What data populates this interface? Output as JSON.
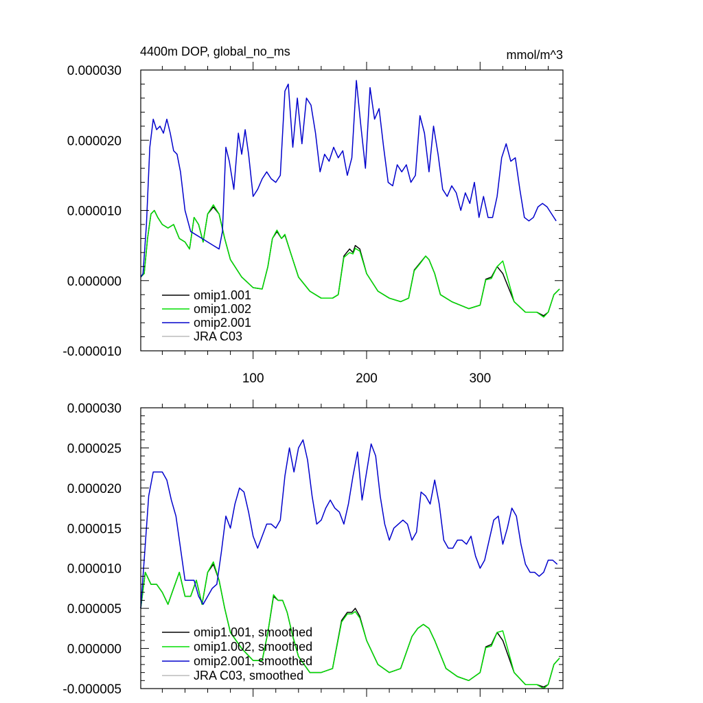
{
  "figure": {
    "title_left": "4400m DOP, global_no_ms",
    "title_right": "mmol/m^3"
  },
  "colors": {
    "omip1_001": "#000000",
    "omip1_002": "#00dd00",
    "omip2_001": "#0000cc",
    "jra_c03": "#bbbbbb"
  },
  "chart_data": [
    {
      "type": "line",
      "panel": "top",
      "title": "4400m DOP, global_no_ms",
      "units": "mmol/m^3",
      "xlim": [
        1,
        373
      ],
      "ylim": [
        -1e-05,
        3e-05
      ],
      "xticks": [
        100,
        200,
        300
      ],
      "xtick_labels": [
        "100",
        "200",
        "300"
      ],
      "yticks": [
        -1e-05,
        0.0,
        1e-05,
        2e-05,
        3e-05
      ],
      "ytick_labels": [
        "-0.000010",
        "0.000000",
        "0.000010",
        "0.000020",
        "0.000030"
      ],
      "legend": [
        "omip1.001",
        "omip1.002",
        "omip2.001",
        "JRA C03"
      ],
      "legend_position": "bottom-left",
      "series": [
        {
          "name": "omip1.001",
          "color_key": "omip1_001",
          "x": [
            1,
            4,
            7,
            10,
            13,
            16,
            20,
            25,
            30,
            35,
            40,
            44,
            48,
            52,
            56,
            60,
            65,
            70,
            75,
            80,
            90,
            100,
            108,
            113,
            117,
            121,
            125,
            128,
            133,
            140,
            150,
            160,
            170,
            175,
            180,
            185,
            188,
            190,
            194,
            200,
            210,
            220,
            230,
            237,
            242,
            247,
            252,
            255,
            260,
            265,
            275,
            290,
            300,
            305,
            310,
            315,
            320,
            330,
            340,
            350,
            356,
            360,
            365,
            370
          ],
          "y": [
            5e-07,
            1e-06,
            6e-06,
            9.5e-06,
            1e-05,
            9e-06,
            8e-06,
            7.5e-06,
            8e-06,
            6e-06,
            5.5e-06,
            4.5e-06,
            9e-06,
            8e-06,
            5.5e-06,
            9.5e-06,
            1.05e-05,
            9.5e-06,
            6e-06,
            3e-06,
            5e-07,
            -1e-06,
            -1.2e-06,
            2e-06,
            6e-06,
            7e-06,
            6e-06,
            6.5e-06,
            4e-06,
            5e-07,
            -1.5e-06,
            -2.5e-06,
            -2.5e-06,
            -2e-06,
            3.5e-06,
            4.5e-06,
            4e-06,
            5e-06,
            4.5e-06,
            1e-06,
            -1.5e-06,
            -2.5e-06,
            -3e-06,
            -2.5e-06,
            1.5e-06,
            2.5e-06,
            3.5e-06,
            3e-06,
            1e-06,
            -2e-06,
            -3e-06,
            -4e-06,
            -3.5e-06,
            2e-07,
            5e-07,
            2e-06,
            1e-06,
            -3e-06,
            -4.5e-06,
            -4.5e-06,
            -5e-06,
            -4.5e-06,
            -2e-06,
            -1.2e-06
          ]
        },
        {
          "name": "omip1.002",
          "color_key": "omip1_002",
          "x": [
            1,
            4,
            7,
            10,
            13,
            16,
            20,
            25,
            30,
            35,
            40,
            44,
            48,
            52,
            56,
            60,
            65,
            70,
            75,
            80,
            90,
            100,
            108,
            113,
            117,
            121,
            125,
            128,
            133,
            140,
            150,
            160,
            170,
            175,
            180,
            185,
            188,
            190,
            194,
            200,
            210,
            220,
            230,
            237,
            242,
            247,
            252,
            255,
            260,
            265,
            275,
            290,
            300,
            305,
            310,
            315,
            320,
            330,
            340,
            350,
            356,
            360,
            365,
            370
          ],
          "y": [
            5e-07,
            1e-06,
            6e-06,
            9.5e-06,
            1e-05,
            9e-06,
            8e-06,
            7.5e-06,
            8e-06,
            6e-06,
            5.5e-06,
            4.5e-06,
            9e-06,
            8e-06,
            5.5e-06,
            9.5e-06,
            1.08e-05,
            9.5e-06,
            6e-06,
            3e-06,
            5e-07,
            -1e-06,
            -1.2e-06,
            2e-06,
            6e-06,
            7.2e-06,
            6e-06,
            6.6e-06,
            4e-06,
            5e-07,
            -1.5e-06,
            -2.5e-06,
            -2.5e-06,
            -2e-06,
            3.3e-06,
            4e-06,
            3.8e-06,
            4.6e-06,
            4.2e-06,
            1e-06,
            -1.5e-06,
            -2.5e-06,
            -3e-06,
            -2.5e-06,
            1.4e-06,
            2.4e-06,
            3.5e-06,
            3e-06,
            1e-06,
            -2e-06,
            -3e-06,
            -4e-06,
            -3.5e-06,
            1e-07,
            3e-07,
            2e-06,
            2.8e-06,
            -3e-06,
            -4.5e-06,
            -4.5e-06,
            -5.2e-06,
            -4.5e-06,
            -2e-06,
            -1.2e-06
          ]
        },
        {
          "name": "omip2.001",
          "color_key": "omip2_001",
          "x": [
            1,
            3,
            6,
            9,
            12,
            15,
            18,
            21,
            24,
            27,
            30,
            33,
            36,
            40,
            45,
            50,
            55,
            60,
            65,
            70,
            73,
            76,
            79,
            83,
            87,
            90,
            93,
            96,
            100,
            104,
            108,
            112,
            116,
            120,
            124,
            128,
            131,
            135,
            139,
            143,
            147,
            151,
            155,
            159,
            163,
            167,
            171,
            175,
            179,
            183,
            187,
            191,
            195,
            199,
            203,
            207,
            211,
            215,
            219,
            223,
            227,
            231,
            235,
            239,
            243,
            247,
            251,
            255,
            259,
            263,
            267,
            271,
            275,
            279,
            283,
            287,
            291,
            295,
            299,
            303,
            307,
            311,
            315,
            319,
            323,
            327,
            331,
            335,
            339,
            343,
            347,
            351,
            355,
            359,
            363,
            367
          ],
          "y": [
            5e-07,
            1e-06,
            8e-06,
            1.9e-05,
            2.3e-05,
            2.15e-05,
            2.2e-05,
            2.1e-05,
            2.3e-05,
            2.1e-05,
            1.85e-05,
            1.8e-05,
            1.55e-05,
            1e-05,
            7e-06,
            6.5e-06,
            6e-06,
            5.5e-06,
            5e-06,
            4.5e-06,
            7e-06,
            1.9e-05,
            1.7e-05,
            1.3e-05,
            2.1e-05,
            1.8e-05,
            2.15e-05,
            1.8e-05,
            1.2e-05,
            1.3e-05,
            1.45e-05,
            1.55e-05,
            1.45e-05,
            1.4e-05,
            1.5e-05,
            2.7e-05,
            2.8e-05,
            1.9e-05,
            2.6e-05,
            1.95e-05,
            2.6e-05,
            2.5e-05,
            2.1e-05,
            1.55e-05,
            1.8e-05,
            1.7e-05,
            1.9e-05,
            1.75e-05,
            1.85e-05,
            1.5e-05,
            1.75e-05,
            2.85e-05,
            2.2e-05,
            1.6e-05,
            2.75e-05,
            2.3e-05,
            2.45e-05,
            1.9e-05,
            1.4e-05,
            1.35e-05,
            1.65e-05,
            1.55e-05,
            1.65e-05,
            1.4e-05,
            1.5e-05,
            2.35e-05,
            2.1e-05,
            1.55e-05,
            2.2e-05,
            1.8e-05,
            1.3e-05,
            1.2e-05,
            1.35e-05,
            1.25e-05,
            1e-05,
            1.25e-05,
            1.1e-05,
            1.4e-05,
            9e-06,
            1.2e-05,
            9e-06,
            9e-06,
            1.2e-05,
            1.75e-05,
            1.95e-05,
            1.7e-05,
            1.75e-05,
            1.3e-05,
            9e-06,
            8.5e-06,
            9e-06,
            1.05e-05,
            1.1e-05,
            1.05e-05,
            9.5e-06,
            8.5e-06
          ]
        },
        {
          "name": "JRA C03",
          "color_key": "jra_c03",
          "x": [],
          "y": []
        }
      ]
    },
    {
      "type": "line",
      "panel": "bottom",
      "title": "",
      "xlim": [
        1,
        373
      ],
      "ylim": [
        -5e-06,
        3e-05
      ],
      "xticks": [
        100,
        200,
        300
      ],
      "xtick_labels": [
        "",
        "",
        ""
      ],
      "yticks": [
        -5e-06,
        0.0,
        5e-06,
        1e-05,
        1.5e-05,
        2e-05,
        2.5e-05,
        3e-05
      ],
      "ytick_labels": [
        "-0.000005",
        "0.000000",
        "0.000005",
        "0.000010",
        "0.000015",
        "0.000020",
        "0.000025",
        "0.000030"
      ],
      "legend": [
        "omip1.001, smoothed",
        "omip1.002, smoothed",
        "omip2.001, smoothed",
        "JRA C03, smoothed"
      ],
      "legend_position": "bottom-left",
      "series": [
        {
          "name": "omip1.001, smoothed",
          "color_key": "omip1_001",
          "x": [
            1,
            5,
            10,
            15,
            20,
            25,
            30,
            35,
            40,
            45,
            50,
            55,
            60,
            65,
            70,
            75,
            80,
            90,
            100,
            108,
            113,
            118,
            122,
            126,
            130,
            135,
            140,
            150,
            160,
            170,
            178,
            183,
            187,
            190,
            194,
            200,
            210,
            220,
            230,
            240,
            245,
            250,
            255,
            260,
            270,
            280,
            290,
            300,
            305,
            310,
            315,
            320,
            330,
            340,
            350,
            356,
            360,
            365,
            370
          ],
          "y": [
            5e-06,
            9.5e-06,
            8e-06,
            8e-06,
            7e-06,
            5.5e-06,
            7.5e-06,
            9.5e-06,
            6.5e-06,
            6.5e-06,
            8.5e-06,
            5.5e-06,
            9.5e-06,
            1.05e-05,
            8.5e-06,
            5e-06,
            2e-06,
            0.0,
            -1.5e-06,
            -1.5e-06,
            2e-06,
            6.5e-06,
            6e-06,
            6e-06,
            4.5e-06,
            1.5e-06,
            -1e-06,
            -3e-06,
            -3e-06,
            -2.5e-06,
            3.5e-06,
            4.5e-06,
            4.5e-06,
            5e-06,
            4e-06,
            1e-06,
            -2e-06,
            -3e-06,
            -2.5e-06,
            1.5e-06,
            2.5e-06,
            3e-06,
            2.5e-06,
            1e-06,
            -2.5e-06,
            -3.5e-06,
            -4e-06,
            -3e-06,
            2e-07,
            5e-07,
            2e-06,
            1e-06,
            -3e-06,
            -4.5e-06,
            -4.5e-06,
            -4.8e-06,
            -4.5e-06,
            -2e-06,
            -1.2e-06
          ]
        },
        {
          "name": "omip1.002, smoothed",
          "color_key": "omip1_002",
          "x": [
            1,
            5,
            10,
            15,
            20,
            25,
            30,
            35,
            40,
            45,
            50,
            55,
            60,
            65,
            70,
            75,
            80,
            90,
            100,
            108,
            113,
            118,
            122,
            126,
            130,
            135,
            140,
            150,
            160,
            170,
            178,
            183,
            187,
            190,
            194,
            200,
            210,
            220,
            230,
            240,
            245,
            250,
            255,
            260,
            270,
            280,
            290,
            300,
            305,
            310,
            315,
            320,
            330,
            340,
            350,
            356,
            360,
            365,
            370
          ],
          "y": [
            5e-06,
            9.5e-06,
            8e-06,
            8e-06,
            7e-06,
            5.5e-06,
            7.5e-06,
            9.5e-06,
            6.5e-06,
            6.5e-06,
            8.5e-06,
            5.5e-06,
            9.5e-06,
            1.08e-05,
            8.5e-06,
            5e-06,
            2e-06,
            0.0,
            -1.5e-06,
            -1.5e-06,
            2e-06,
            6.7e-06,
            6e-06,
            6e-06,
            4.5e-06,
            1.5e-06,
            -1e-06,
            -3e-06,
            -3e-06,
            -2.5e-06,
            3.3e-06,
            4.3e-06,
            4.3e-06,
            4.6e-06,
            3.8e-06,
            1e-06,
            -2e-06,
            -3e-06,
            -2.5e-06,
            1.5e-06,
            2.5e-06,
            3e-06,
            2.5e-06,
            1e-06,
            -2.5e-06,
            -3.5e-06,
            -4e-06,
            -3e-06,
            1e-07,
            3e-07,
            2e-06,
            2.2e-06,
            -3e-06,
            -4.5e-06,
            -4.5e-06,
            -5e-06,
            -4.5e-06,
            -2e-06,
            -1.2e-06
          ]
        },
        {
          "name": "omip2.001, smoothed",
          "color_key": "omip2_001",
          "x": [
            1,
            4,
            8,
            12,
            16,
            20,
            24,
            28,
            32,
            36,
            40,
            44,
            48,
            52,
            56,
            60,
            64,
            68,
            72,
            76,
            80,
            84,
            88,
            92,
            96,
            100,
            104,
            108,
            112,
            116,
            120,
            124,
            128,
            132,
            136,
            140,
            144,
            148,
            152,
            156,
            160,
            164,
            168,
            172,
            176,
            180,
            184,
            188,
            192,
            196,
            200,
            204,
            208,
            212,
            216,
            220,
            224,
            228,
            232,
            236,
            240,
            244,
            248,
            252,
            256,
            260,
            264,
            268,
            272,
            276,
            280,
            284,
            288,
            292,
            296,
            300,
            304,
            308,
            312,
            316,
            320,
            324,
            328,
            332,
            336,
            340,
            344,
            348,
            352,
            356,
            360,
            364,
            368
          ],
          "y": [
            5e-06,
            1.1e-05,
            1.9e-05,
            2.2e-05,
            2.2e-05,
            2.2e-05,
            2.1e-05,
            1.85e-05,
            1.65e-05,
            1.25e-05,
            8.5e-06,
            8.5e-06,
            8.5e-06,
            6.5e-06,
            5.5e-06,
            6.5e-06,
            7.5e-06,
            8e-06,
            1.2e-05,
            1.65e-05,
            1.5e-05,
            1.8e-05,
            2e-05,
            1.95e-05,
            1.7e-05,
            1.4e-05,
            1.25e-05,
            1.4e-05,
            1.55e-05,
            1.55e-05,
            1.5e-05,
            1.6e-05,
            2.15e-05,
            2.5e-05,
            2.2e-05,
            2.5e-05,
            2.6e-05,
            2.35e-05,
            1.9e-05,
            1.55e-05,
            1.6e-05,
            1.75e-05,
            1.85e-05,
            1.75e-05,
            1.7e-05,
            1.55e-05,
            1.8e-05,
            2.15e-05,
            2.45e-05,
            1.85e-05,
            2.2e-05,
            2.55e-05,
            2.4e-05,
            1.9e-05,
            1.55e-05,
            1.35e-05,
            1.5e-05,
            1.55e-05,
            1.6e-05,
            1.55e-05,
            1.35e-05,
            1.45e-05,
            1.95e-05,
            1.9e-05,
            1.8e-05,
            2.1e-05,
            1.8e-05,
            1.35e-05,
            1.25e-05,
            1.25e-05,
            1.35e-05,
            1.35e-05,
            1.3e-05,
            1.4e-05,
            1.15e-05,
            1e-05,
            1.1e-05,
            1.35e-05,
            1.6e-05,
            1.65e-05,
            1.3e-05,
            1.5e-05,
            1.75e-05,
            1.65e-05,
            1.3e-05,
            1.05e-05,
            9.5e-06,
            9.5e-06,
            9e-06,
            9.5e-06,
            1.1e-05,
            1.1e-05,
            1.05e-05
          ]
        },
        {
          "name": "JRA C03, smoothed",
          "color_key": "jra_c03",
          "x": [],
          "y": []
        }
      ]
    }
  ]
}
